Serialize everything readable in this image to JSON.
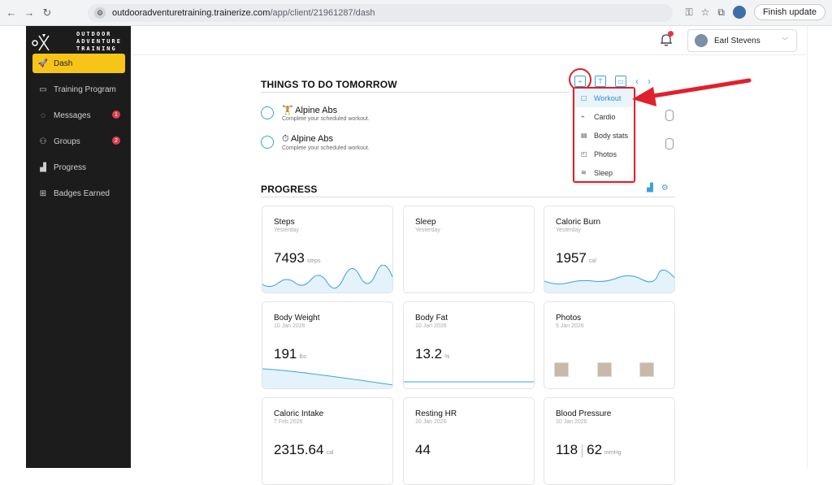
{
  "browser": {
    "url_domain": "outdooradventuretraining.trainerize.com",
    "url_path": "/app/client/21961287/dash",
    "finish_update": "Finish update"
  },
  "logo": {
    "line1": "OUTDOOR",
    "line2": "ADVENTURE",
    "line3": "TRAINING"
  },
  "sidebar": {
    "items": [
      {
        "label": "Dash",
        "icon": "rocket-icon"
      },
      {
        "label": "Training Program",
        "icon": "folder-icon"
      },
      {
        "label": "Messages",
        "icon": "chat-icon",
        "badge": "1"
      },
      {
        "label": "Groups",
        "icon": "group-icon",
        "badge": "2"
      },
      {
        "label": "Progress",
        "icon": "chart-icon"
      },
      {
        "label": "Badges Earned",
        "icon": "grid-icon"
      }
    ]
  },
  "topbar": {
    "user_name": "Earl Stevens"
  },
  "tomorrow": {
    "title": "THINGS TO DO TOMORROW",
    "tasks": [
      {
        "title": "Alpine Abs",
        "subtitle": "Complete your scheduled workout."
      },
      {
        "title": "Alpine Abs",
        "subtitle": "Complete your scheduled workout."
      }
    ]
  },
  "add_menu": {
    "items": [
      "Workout",
      "Cardio",
      "Body stats",
      "Photos",
      "Sleep"
    ],
    "highlighted": "Workout"
  },
  "progress": {
    "title": "PROGRESS",
    "cards": [
      {
        "title": "Steps",
        "sub": "Yesterday",
        "value": "7493",
        "unit": "steps"
      },
      {
        "title": "Sleep",
        "sub": "Yesterday",
        "value": "",
        "unit": ""
      },
      {
        "title": "Caloric Burn",
        "sub": "Yesterday",
        "value": "1957",
        "unit": "cal"
      },
      {
        "title": "Body Weight",
        "sub": "10 Jan 2026",
        "value": "191",
        "unit": "lbs"
      },
      {
        "title": "Body Fat",
        "sub": "10 Jan 2026",
        "value": "13.2",
        "unit": "%"
      },
      {
        "title": "Photos",
        "sub": "5 Jan 2026",
        "value": "",
        "unit": ""
      },
      {
        "title": "Caloric Intake",
        "sub": "7 Feb 2026",
        "value": "2315.64",
        "unit": "cal"
      },
      {
        "title": "Resting HR",
        "sub": "10 Jan 2026",
        "value": "44",
        "unit": ""
      },
      {
        "title": "Blood Pressure",
        "sub": "10 Jan 2026",
        "value": "118",
        "value2": "62",
        "unit": "mmHg"
      }
    ]
  },
  "colors": {
    "accent": "#3aa0e0",
    "active_nav": "#f6c518",
    "annotation": "#e0202a",
    "badge": "#e03a4a"
  }
}
